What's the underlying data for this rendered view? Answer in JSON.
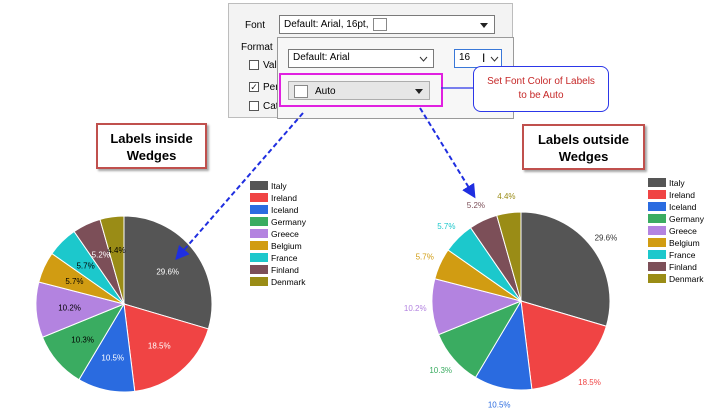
{
  "dialog": {
    "font_label": "Font",
    "font_value": "Default: Arial, 16pt,",
    "format_label": "Format",
    "check_value_label": "Valu",
    "check_percent_label": "Perc",
    "check_category_label": "Cat",
    "font_name_value": "Default: Arial",
    "font_size_value": "16",
    "color_value": "Auto"
  },
  "callout": {
    "line1": "Set Font Color of Labels",
    "line2": "to be Auto"
  },
  "titles": {
    "inside_line1": "Labels inside",
    "inside_line2": "Wedges",
    "outside_line1": "Labels outside",
    "outside_line2": "Wedges"
  },
  "colors": {
    "Italy": "#555555",
    "Ireland": "#f04444",
    "Iceland": "#2a6be0",
    "Germany": "#3aac61",
    "Greece": "#b383e0",
    "Belgium": "#d19c12",
    "France": "#1cc8cc",
    "Finland": "#7c4f58",
    "Denmark": "#9a8c16",
    "callout_border": "#2c37e8",
    "callout_text": "#c62828",
    "title_border": "#c0504d",
    "highlight": "#e020e0"
  },
  "chart_data": [
    {
      "type": "pie",
      "labels_position": "inside",
      "categories": [
        "Italy",
        "Ireland",
        "Iceland",
        "Germany",
        "Greece",
        "Belgium",
        "France",
        "Finland",
        "Denmark"
      ],
      "values": [
        29.6,
        18.5,
        10.5,
        10.3,
        10.2,
        5.7,
        5.7,
        5.2,
        4.4
      ],
      "value_labels": [
        "29.6%",
        "18.5%",
        "10.5%",
        "10.3%",
        "10.2%",
        "5.7%",
        "5.7%",
        "5.2%",
        "4.4%"
      ],
      "legend": "right"
    },
    {
      "type": "pie",
      "labels_position": "outside",
      "categories": [
        "Italy",
        "Ireland",
        "Iceland",
        "Germany",
        "Greece",
        "Belgium",
        "France",
        "Finland",
        "Denmark"
      ],
      "values": [
        29.6,
        18.5,
        10.5,
        10.3,
        10.2,
        5.7,
        5.7,
        5.2,
        4.4
      ],
      "value_labels": [
        "29.6%",
        "18.5%",
        "10.5%",
        "10.3%",
        "10.2%",
        "5.7%",
        "5.7%",
        "5.2%",
        "4.4%"
      ],
      "legend": "right"
    }
  ]
}
